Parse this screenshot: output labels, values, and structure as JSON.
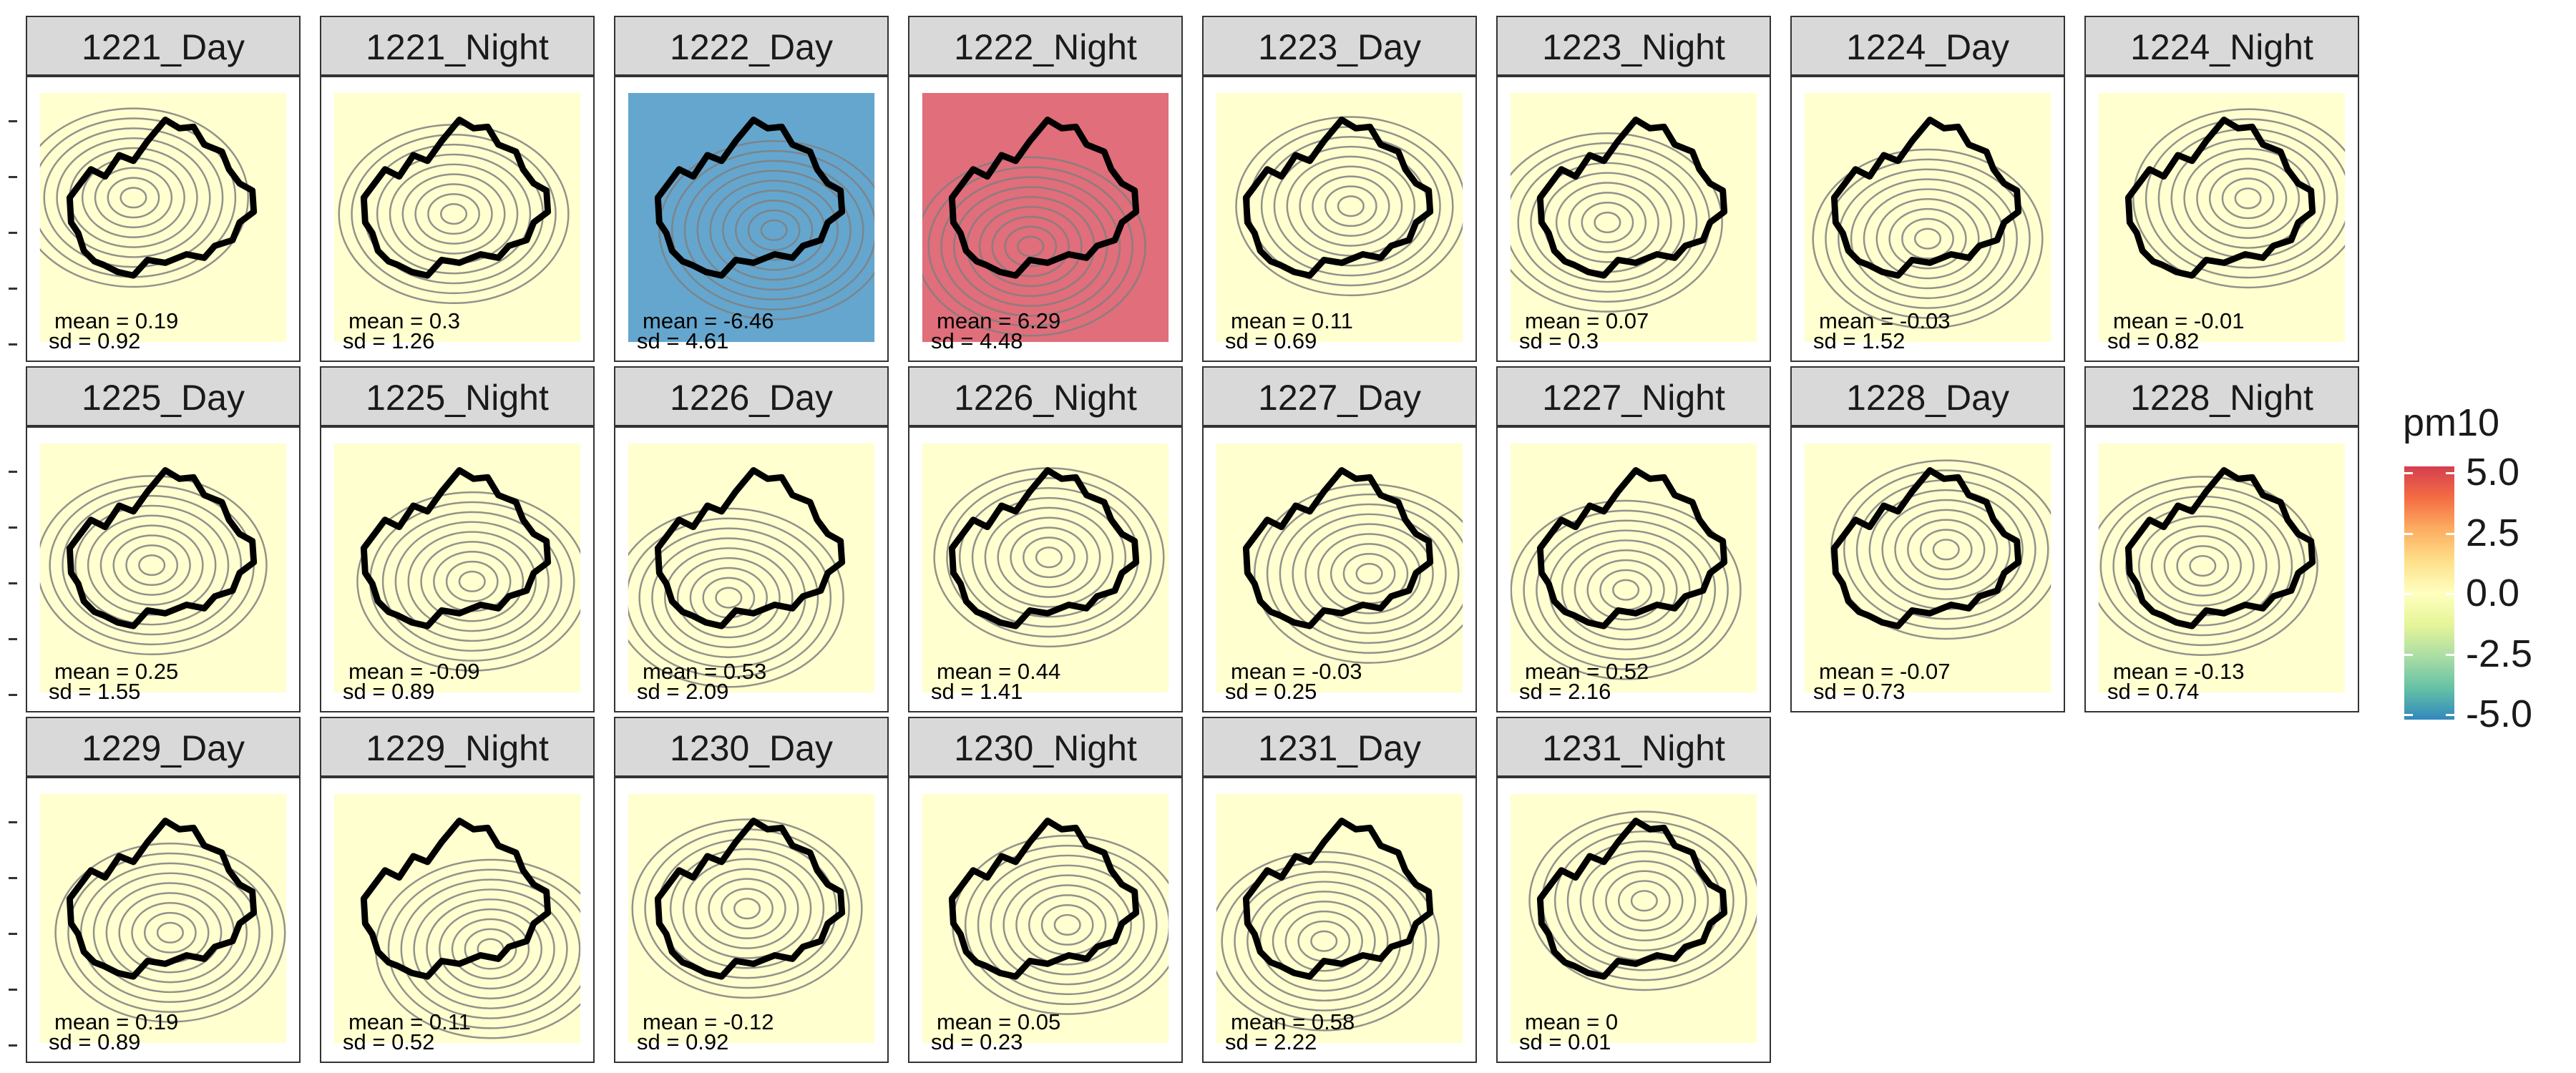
{
  "chart_data": {
    "type": "heatmap",
    "title": "",
    "colorbar": {
      "title": "pm10",
      "ticks": [
        "5.0",
        "2.5",
        "0.0",
        "-2.5",
        "-5.0"
      ],
      "range": [
        -5,
        5
      ],
      "colors": [
        "#d53e4f",
        "#f46d43",
        "#fdae61",
        "#fee08b",
        "#ffffbf",
        "#e6f598",
        "#abdda4",
        "#66c2a5",
        "#3288bd"
      ]
    },
    "panels": [
      {
        "label": "1221_Day",
        "mean": "mean = 0.19",
        "sd": "sd = 0.92"
      },
      {
        "label": "1221_Night",
        "mean": "mean = 0.3",
        "sd": "sd = 1.26"
      },
      {
        "label": "1222_Day",
        "mean": "mean = -6.46",
        "sd": "sd = 4.61"
      },
      {
        "label": "1222_Night",
        "mean": "mean = 6.29",
        "sd": "sd = 4.48"
      },
      {
        "label": "1223_Day",
        "mean": "mean = 0.11",
        "sd": "sd = 0.69"
      },
      {
        "label": "1223_Night",
        "mean": "mean = 0.07",
        "sd": "sd = 0.3"
      },
      {
        "label": "1224_Day",
        "mean": "mean = -0.03",
        "sd": "sd = 1.52"
      },
      {
        "label": "1224_Night",
        "mean": "mean = -0.01",
        "sd": "sd = 0.82"
      },
      {
        "label": "1225_Day",
        "mean": "mean = 0.25",
        "sd": "sd = 1.55"
      },
      {
        "label": "1225_Night",
        "mean": "mean = -0.09",
        "sd": "sd = 0.89"
      },
      {
        "label": "1226_Day",
        "mean": "mean = 0.53",
        "sd": "sd = 2.09"
      },
      {
        "label": "1226_Night",
        "mean": "mean = 0.44",
        "sd": "sd = 1.41"
      },
      {
        "label": "1227_Day",
        "mean": "mean = -0.03",
        "sd": "sd = 0.25"
      },
      {
        "label": "1227_Night",
        "mean": "mean = 0.52",
        "sd": "sd = 2.16"
      },
      {
        "label": "1228_Day",
        "mean": "mean = -0.07",
        "sd": "sd = 0.73"
      },
      {
        "label": "1228_Night",
        "mean": "mean = -0.13",
        "sd": "sd = 0.74"
      },
      {
        "label": "1229_Day",
        "mean": "mean = 0.19",
        "sd": "sd = 0.89"
      },
      {
        "label": "1229_Night",
        "mean": "mean = 0.11",
        "sd": "sd = 0.52"
      },
      {
        "label": "1230_Day",
        "mean": "mean = -0.12",
        "sd": "sd = 0.92"
      },
      {
        "label": "1230_Night",
        "mean": "mean = 0.05",
        "sd": "sd = 0.23"
      },
      {
        "label": "1231_Day",
        "mean": "mean = 0.58",
        "sd": "sd = 2.22"
      },
      {
        "label": "1231_Night",
        "mean": "mean = 0",
        "sd": "sd = 0.01"
      }
    ]
  }
}
